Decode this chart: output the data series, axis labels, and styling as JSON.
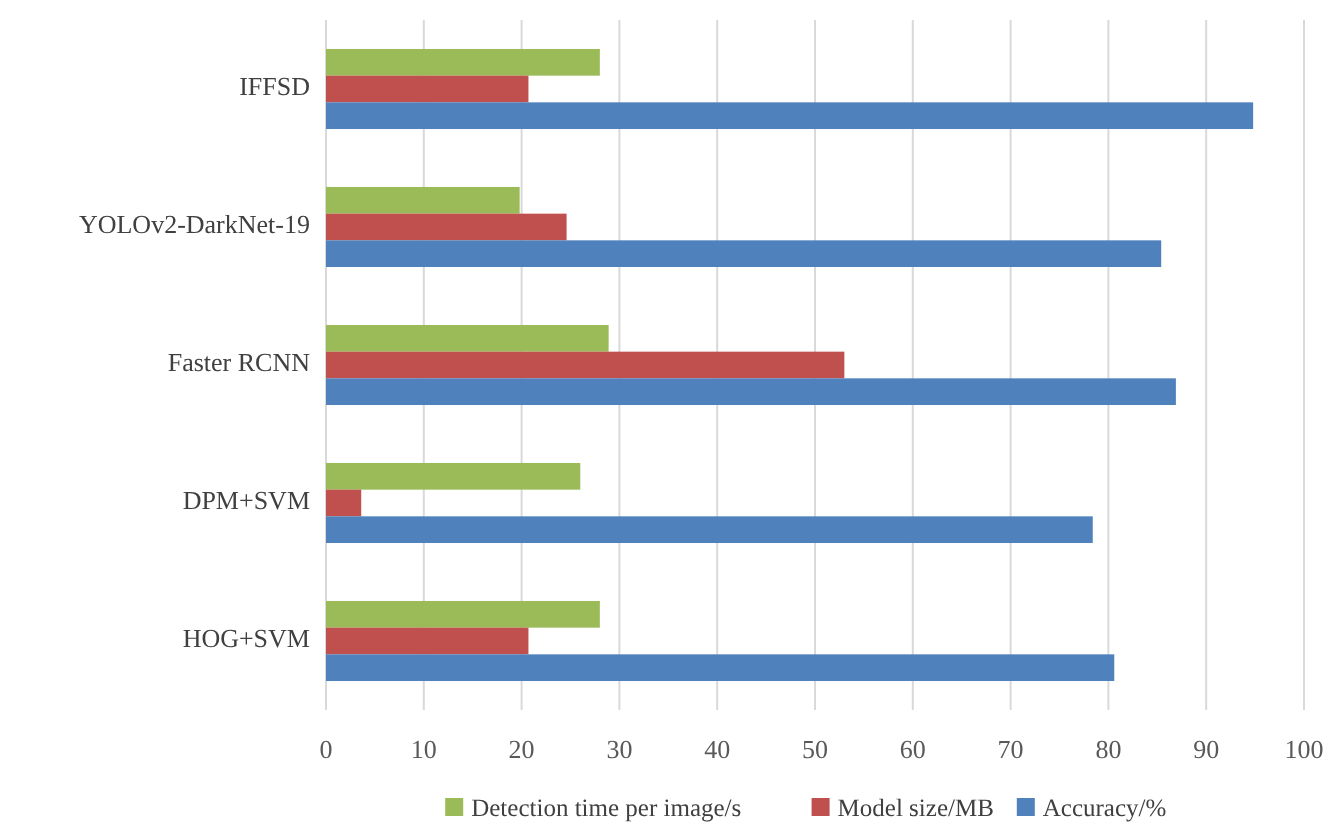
{
  "chart_data": {
    "type": "bar",
    "orientation": "horizontal",
    "categories": [
      "IFFSD",
      "YOLOv2-DarkNet-19",
      "Faster RCNN",
      "DPM+SVM",
      "HOG+SVM"
    ],
    "series": [
      {
        "name": "Detection time per image/s",
        "color": "#9bbb59",
        "values": [
          28.0,
          19.8,
          28.9,
          26.0,
          28.0
        ]
      },
      {
        "name": "Model size/MB",
        "color": "#c0504d",
        "values": [
          20.7,
          24.6,
          53.0,
          3.6,
          20.7
        ]
      },
      {
        "name": "Accuracy/%",
        "color": "#4f81bd",
        "values": [
          94.8,
          85.4,
          86.9,
          78.4,
          80.6
        ]
      }
    ],
    "xlim": [
      0,
      100
    ],
    "xticks": [
      0,
      10,
      20,
      30,
      40,
      50,
      60,
      70,
      80,
      90,
      100
    ],
    "grid": "x",
    "legend": "bottom"
  }
}
